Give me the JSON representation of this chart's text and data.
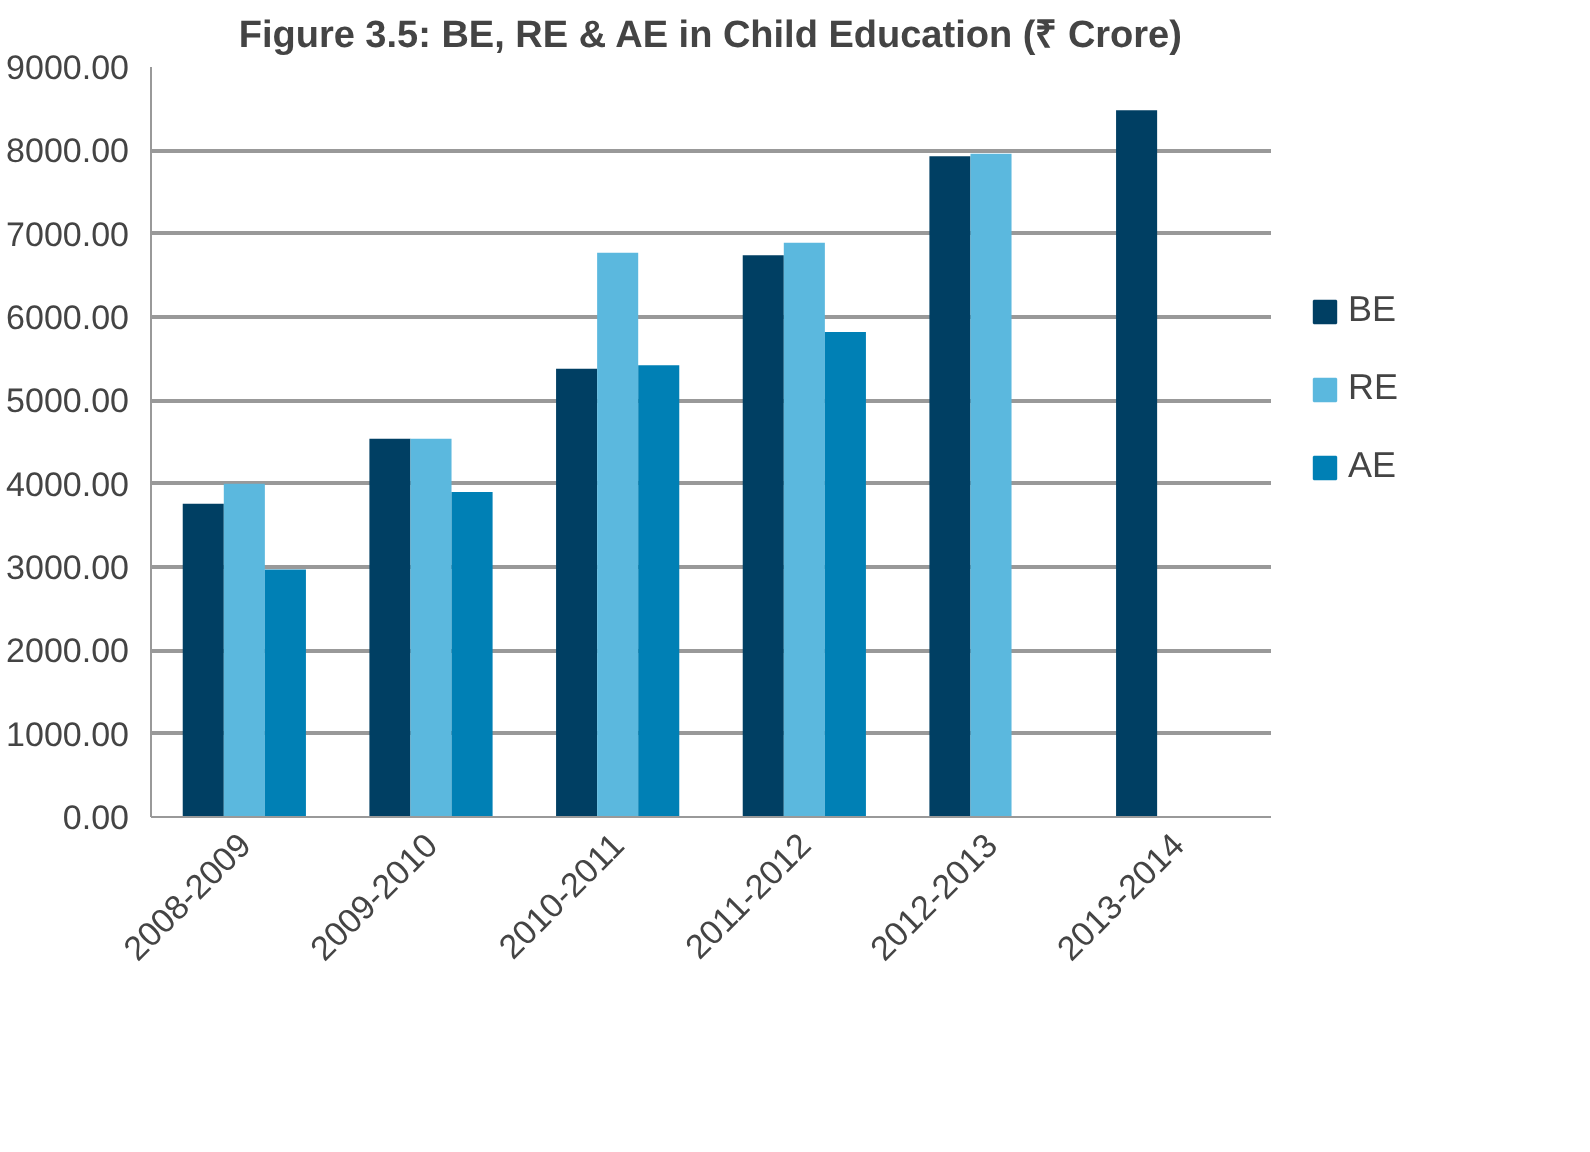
{
  "chart_data": {
    "type": "bar",
    "title": "Figure 3.5: BE, RE & AE in Child Education (₹ Crore)",
    "categories": [
      "2008-2009",
      "2009-2010",
      "2010-2011",
      "2011-2012",
      "2012-2013",
      "2013-2014"
    ],
    "series": [
      {
        "name": "BE",
        "color": "#003f63",
        "values": [
          3760,
          4540,
          5380,
          6740,
          7930,
          8480
        ]
      },
      {
        "name": "RE",
        "color": "#5bb8de",
        "values": [
          4000,
          4540,
          6770,
          6890,
          7960,
          null
        ]
      },
      {
        "name": "AE",
        "color": "#0080b5",
        "values": [
          2970,
          3900,
          5420,
          5820,
          null,
          null
        ]
      }
    ],
    "ylim": [
      0,
      9000
    ],
    "yticks": [
      {
        "value": 0,
        "label": "0.00"
      },
      {
        "value": 1000,
        "label": "1000.00"
      },
      {
        "value": 2000,
        "label": "2000.00"
      },
      {
        "value": 3000,
        "label": "3000.00"
      },
      {
        "value": 4000,
        "label": "4000.00"
      },
      {
        "value": 5000,
        "label": "5000.00"
      },
      {
        "value": 6000,
        "label": "6000.00"
      },
      {
        "value": 7000,
        "label": "7000.00"
      },
      {
        "value": 8000,
        "label": "8000.00"
      },
      {
        "value": 9000,
        "label": "9000.00"
      }
    ],
    "grid": "y",
    "legend": "right"
  }
}
